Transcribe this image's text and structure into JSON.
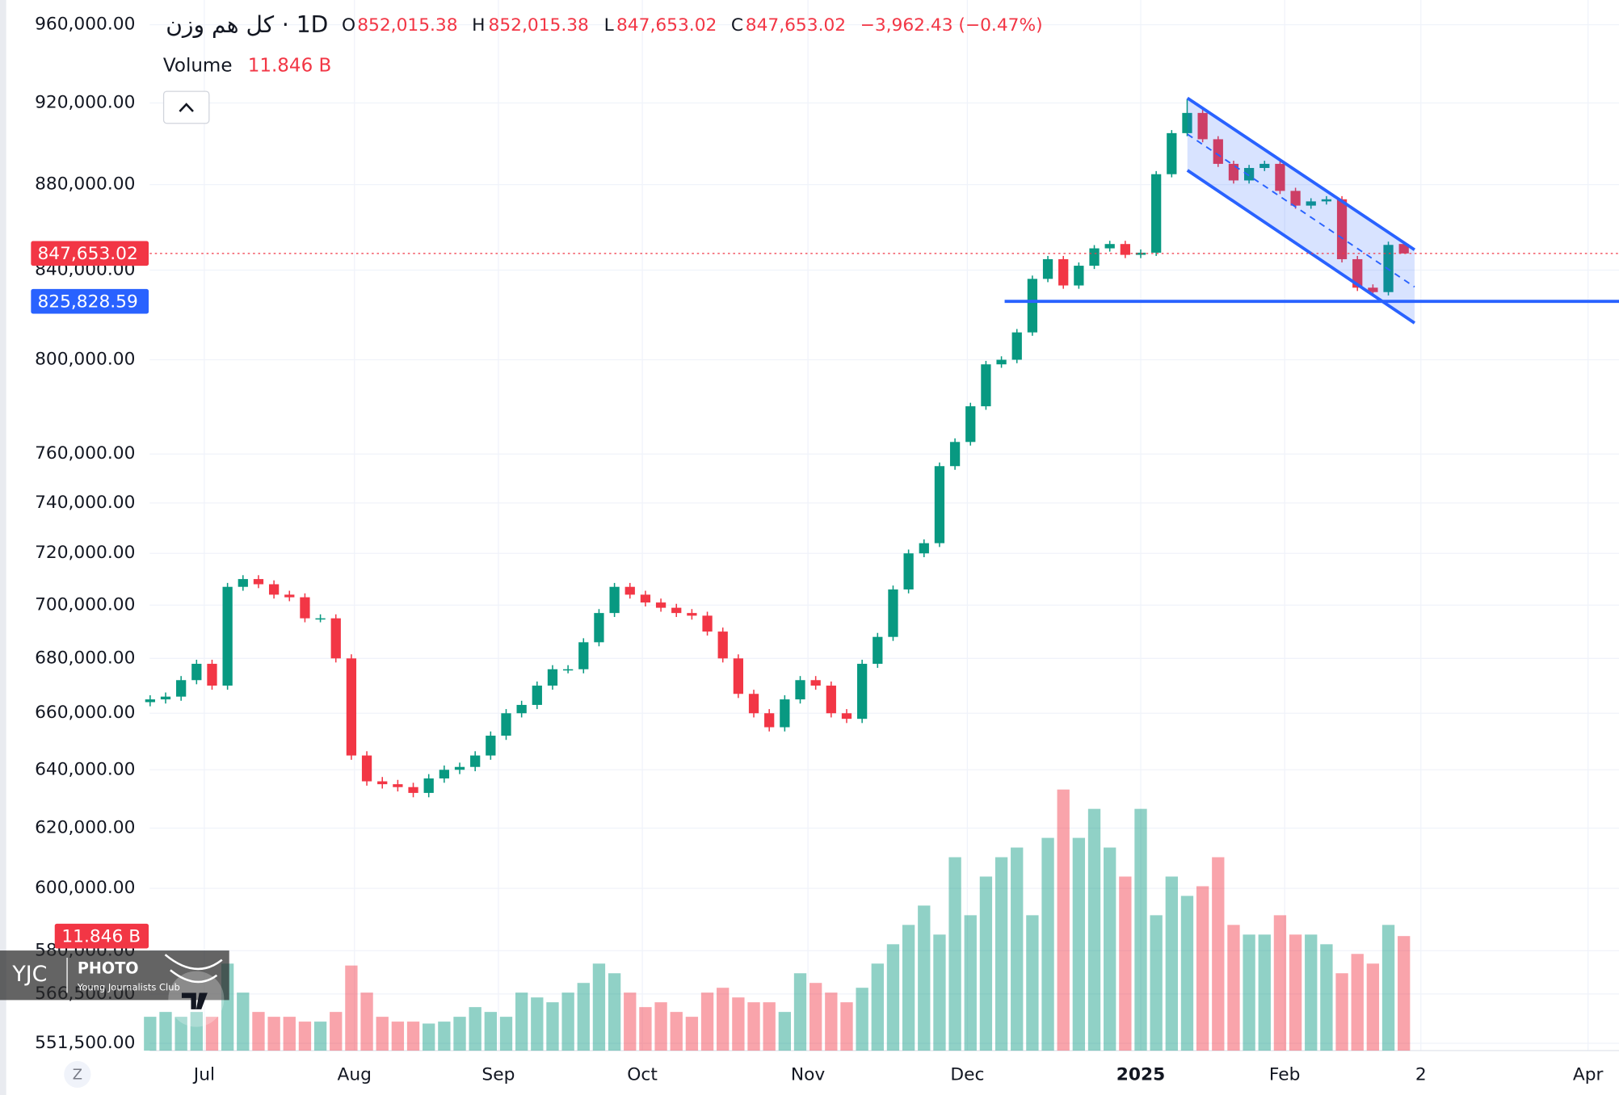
{
  "chart_data": {
    "type": "candlestick",
    "header": {
      "symbol": "کل هم وزن",
      "interval": "· 1D",
      "ohlc": [
        {
          "key": "O",
          "text": "852,015.38"
        },
        {
          "key": "H",
          "text": "852,015.38"
        },
        {
          "key": "L",
          "text": "847,653.02"
        },
        {
          "key": "C",
          "text": "847,653.02"
        }
      ],
      "change": "−3,962.43 (−0.47%)",
      "volume_name": "Volume",
      "volume_text": "11.846 B"
    },
    "up_color": "#089981",
    "down_color": "#f23645",
    "log_scale": true,
    "grid": true,
    "ylim": [
      549300,
      973000
    ],
    "yticks": [
      {
        "value": 960000,
        "label": "960,000.00"
      },
      {
        "value": 920000,
        "label": "920,000.00"
      },
      {
        "value": 880000,
        "label": "880,000.00"
      },
      {
        "value": 840000,
        "label": "840,000.00"
      },
      {
        "value": 800000,
        "label": "800,000.00"
      },
      {
        "value": 760000,
        "label": "760,000.00"
      },
      {
        "value": 740000,
        "label": "740,000.00"
      },
      {
        "value": 720000,
        "label": "720,000.00"
      },
      {
        "value": 700000,
        "label": "700,000.00"
      },
      {
        "value": 680000,
        "label": "680,000.00"
      },
      {
        "value": 660000,
        "label": "660,000.00"
      },
      {
        "value": 640000,
        "label": "640,000.00"
      },
      {
        "value": 620000,
        "label": "620,000.00"
      },
      {
        "value": 600000,
        "label": "600,000.00"
      },
      {
        "value": 580000,
        "label": "580,000.00"
      },
      {
        "value": 566500,
        "label": "566,500.00"
      },
      {
        "value": 551500,
        "label": "551,500.00"
      }
    ],
    "xlim": [
      -9.7,
      94.9
    ],
    "xticks": [
      {
        "value": 3.5,
        "label": "Jul"
      },
      {
        "value": 13.2,
        "label": "Aug"
      },
      {
        "value": 22.5,
        "label": "Sep"
      },
      {
        "value": 31.8,
        "label": "Oct"
      },
      {
        "value": 42.5,
        "label": "Nov"
      },
      {
        "value": 52.8,
        "label": "Dec"
      },
      {
        "value": 64,
        "label": "2025"
      },
      {
        "value": 73.3,
        "label": "Feb"
      },
      {
        "value": 82.1,
        "label": "2"
      },
      {
        "value": 92.9,
        "label": "Apr"
      }
    ],
    "open": [
      664000,
      665000,
      666000,
      672000,
      678000,
      670000,
      707000,
      710000,
      708000,
      704000,
      703000,
      695000,
      695000,
      680000,
      645000,
      636000,
      635000,
      634000,
      632000,
      637000,
      640000,
      641000,
      645000,
      652000,
      660000,
      663000,
      670000,
      676000,
      676000,
      686000,
      697000,
      707000,
      704000,
      701000,
      699000,
      697000,
      696000,
      690000,
      680000,
      667000,
      660000,
      655000,
      665000,
      672000,
      670000,
      660000,
      658000,
      678000,
      688000,
      706000,
      720000,
      724000,
      755000,
      765000,
      780000,
      798000,
      800000,
      812000,
      836000,
      845000,
      833000,
      842000,
      850000,
      852000,
      847000,
      848000,
      885000,
      905000,
      915000,
      902000,
      890000,
      882000,
      888000,
      890000,
      877000,
      870000,
      872000,
      873000,
      845000,
      832000,
      830000,
      852015.38
    ],
    "high": [
      666500,
      667500,
      673500,
      679500,
      679500,
      708500,
      711500,
      711500,
      709500,
      705500,
      704500,
      696500,
      696500,
      681500,
      646500,
      637500,
      636500,
      635500,
      638500,
      641500,
      642500,
      646500,
      653500,
      661500,
      664500,
      671500,
      677500,
      677500,
      687500,
      698500,
      708500,
      708500,
      705500,
      702500,
      700500,
      698500,
      697500,
      691500,
      681500,
      668500,
      661500,
      666500,
      673500,
      673500,
      671500,
      661500,
      679500,
      689500,
      707500,
      721500,
      725500,
      756500,
      766500,
      781500,
      799500,
      801500,
      813500,
      837500,
      846500,
      846500,
      843500,
      851500,
      853500,
      853500,
      849500,
      886500,
      906500,
      922000,
      916500,
      903500,
      891500,
      889500,
      891500,
      891500,
      878500,
      873500,
      874500,
      874500,
      846500,
      833500,
      853100,
      852015.38
    ],
    "low": [
      662500,
      663500,
      664500,
      670500,
      668500,
      668500,
      705500,
      706500,
      702500,
      701500,
      693500,
      693500,
      678500,
      643500,
      634500,
      633500,
      632500,
      630500,
      630500,
      635500,
      638500,
      639500,
      643500,
      650500,
      658500,
      661500,
      668500,
      674500,
      674500,
      684500,
      695500,
      702500,
      699500,
      697500,
      695500,
      694500,
      688500,
      678500,
      665500,
      658500,
      653500,
      653500,
      663500,
      668500,
      658500,
      656500,
      656500,
      676500,
      686500,
      704500,
      718500,
      722500,
      753500,
      763500,
      778500,
      796500,
      798500,
      810500,
      834500,
      831500,
      831500,
      840500,
      848500,
      845500,
      845500,
      846500,
      883500,
      903500,
      900500,
      888500,
      880500,
      880500,
      886500,
      875500,
      868500,
      868500,
      870500,
      843500,
      830500,
      828500,
      828500,
      847653.02
    ],
    "close": [
      665000,
      666000,
      672000,
      678000,
      670000,
      707000,
      710000,
      708000,
      704000,
      703000,
      695000,
      695000,
      680000,
      645000,
      636000,
      635000,
      634000,
      632000,
      637000,
      640000,
      641000,
      645000,
      652000,
      660000,
      663000,
      670000,
      676000,
      676000,
      686000,
      697000,
      707000,
      704000,
      701000,
      699000,
      697000,
      696000,
      690000,
      680000,
      667000,
      660000,
      655000,
      665000,
      672000,
      670000,
      660000,
      658000,
      678000,
      688000,
      706000,
      720000,
      724000,
      755000,
      765000,
      780000,
      798000,
      800000,
      812000,
      836000,
      845000,
      833000,
      842000,
      850000,
      852000,
      847000,
      848000,
      885000,
      905000,
      915000,
      902000,
      890000,
      882000,
      888000,
      890000,
      877000,
      870000,
      872000,
      873000,
      845000,
      832000,
      830000,
      851600,
      847653.02
    ],
    "volume": [
      3.5,
      4,
      3.5,
      4,
      3.5,
      9,
      6,
      4,
      3.5,
      3.5,
      3,
      3,
      4,
      8.8,
      6,
      3.5,
      3,
      3,
      2.8,
      3,
      3.5,
      4.5,
      4,
      3.5,
      6,
      5.5,
      5,
      6,
      7,
      9,
      8,
      6,
      4.5,
      5,
      4,
      3.5,
      6,
      6.5,
      5.5,
      5,
      5,
      4,
      8,
      7,
      6,
      5,
      6.5,
      9,
      11,
      13,
      15,
      12,
      20,
      14,
      18,
      20,
      21,
      14,
      22,
      27,
      22,
      25,
      21,
      18,
      25,
      14,
      18,
      16,
      17,
      20,
      13,
      12,
      12,
      14,
      12,
      12,
      11,
      8,
      10,
      9,
      13,
      11.846
    ],
    "volume_scale_label": "11.846 B",
    "last_price_label": "847,653.02",
    "horizontal_line": {
      "value": 825828.59,
      "label": "825,828.59",
      "color": "#2962ff"
    },
    "watermark": {
      "brand": "YJC",
      "word": "PHOTO",
      "caption": "Young Journalists Club"
    },
    "timezone_button": "Z"
  }
}
